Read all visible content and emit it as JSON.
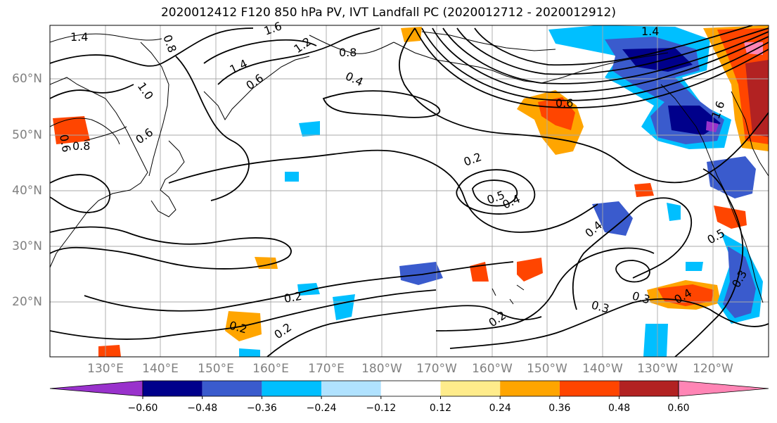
{
  "title": "2020012412 F120 850 hPa PV, IVT Landfall PC (2020012712 - 2020012912)",
  "lat_labels": [
    "60°N",
    "50°N",
    "40°N",
    "30°N",
    "20°N"
  ],
  "lon_labels": [
    "130°E",
    "140°E",
    "150°E",
    "160°E",
    "170°E",
    "180°W",
    "170°W",
    "160°W",
    "150°W",
    "140°W",
    "130°W",
    "120°W"
  ],
  "colorbar": {
    "colors": [
      "#9932CC",
      "#00008B",
      "#3A5BCD",
      "#00BFFF",
      "#B0E2FF",
      "#FFFFFF",
      "#FFEC8B",
      "#FFA500",
      "#FF4500",
      "#B22222",
      "#FF85B5"
    ],
    "ticks": [
      "−0.60",
      "−0.48",
      "−0.36",
      "−0.24",
      "−0.12",
      "0.12",
      "0.24",
      "0.36",
      "0.48",
      "0.60"
    ]
  },
  "contour_labels": [
    "1.4",
    "0.8",
    "1.6",
    "1.2",
    "0.8",
    "1.4",
    "0.6",
    "0.4",
    "1.0",
    "0.6",
    "0.8",
    "0.6",
    "0.2",
    "0.5",
    "0.4",
    "0.4",
    "0.5",
    "0.3",
    "0.3",
    "0.4",
    "0.3",
    "0.2",
    "0.2",
    "0.2",
    "0.2",
    "0.6",
    "1.4",
    "1.6"
  ]
}
